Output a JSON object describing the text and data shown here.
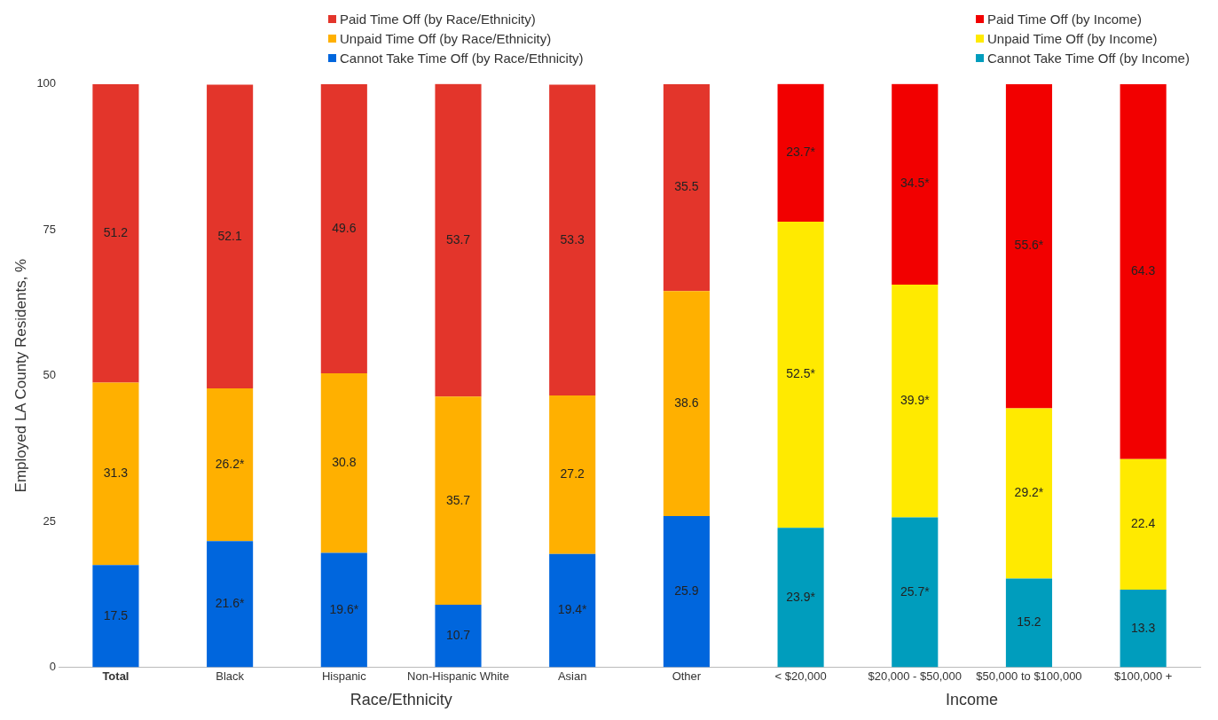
{
  "chart_data": {
    "type": "bar",
    "stacked": true,
    "ylabel": "Employed LA County Residents, %",
    "categories": [
      "Total",
      "Black",
      "Hispanic",
      "Non-Hispanic White",
      "Asian",
      "Other",
      "< $20,000",
      "$20,000 - $50,000",
      "$50,000 to $100,000",
      "$100,000 +"
    ],
    "series": [
      {
        "name": "Cannot Take Time Off (by Race/Ethnicity)",
        "color": "#0066dd",
        "values": [
          17.5,
          21.6,
          19.6,
          10.7,
          19.4,
          25.9,
          null,
          null,
          null,
          null
        ],
        "value_labels": [
          "17.5",
          "21.6*",
          "19.6*",
          "10.7",
          "19.4*",
          "25.9",
          null,
          null,
          null,
          null
        ]
      },
      {
        "name": "Unpaid Time Off (by Race/Ethnicity)",
        "color": "#ffb000",
        "values": [
          31.3,
          26.2,
          30.8,
          35.7,
          27.2,
          38.6,
          null,
          null,
          null,
          null
        ],
        "value_labels": [
          "31.3",
          "26.2*",
          "30.8",
          "35.7",
          "27.2",
          "38.6",
          null,
          null,
          null,
          null
        ]
      },
      {
        "name": "Paid Time Off (by Race/Ethnicity)",
        "color": "#e3352b",
        "values": [
          51.2,
          52.1,
          49.6,
          53.7,
          53.3,
          35.5,
          null,
          null,
          null,
          null
        ],
        "value_labels": [
          "51.2",
          "52.1",
          "49.6",
          "53.7",
          "53.3",
          "35.5",
          null,
          null,
          null,
          null
        ]
      },
      {
        "name": "Cannot Take Time Off (by Income)",
        "color": "#009dbd",
        "values": [
          null,
          null,
          null,
          null,
          null,
          null,
          23.9,
          25.7,
          15.2,
          13.3
        ],
        "value_labels": [
          null,
          null,
          null,
          null,
          null,
          null,
          "23.9*",
          "25.7*",
          "15.2",
          "13.3"
        ]
      },
      {
        "name": "Unpaid Time Off (by Income)",
        "color": "#ffea00",
        "values": [
          null,
          null,
          null,
          null,
          null,
          null,
          52.5,
          39.9,
          29.2,
          22.4
        ],
        "value_labels": [
          null,
          null,
          null,
          null,
          null,
          null,
          "52.5*",
          "39.9*",
          "29.2*",
          "22.4"
        ]
      },
      {
        "name": "Paid Time Off (by Income)",
        "color": "#f20000",
        "values": [
          null,
          null,
          null,
          null,
          null,
          null,
          23.7,
          34.5,
          55.6,
          64.3
        ],
        "value_labels": [
          null,
          null,
          null,
          null,
          null,
          null,
          "23.7*",
          "34.5*",
          "55.6*",
          "64.3"
        ]
      }
    ],
    "ylim": [
      0,
      100
    ],
    "yticks": [
      0,
      25,
      50,
      75,
      100
    ],
    "grid": false,
    "legend": "top",
    "annotations": [
      "Race/Ethnicity",
      "Income"
    ]
  }
}
